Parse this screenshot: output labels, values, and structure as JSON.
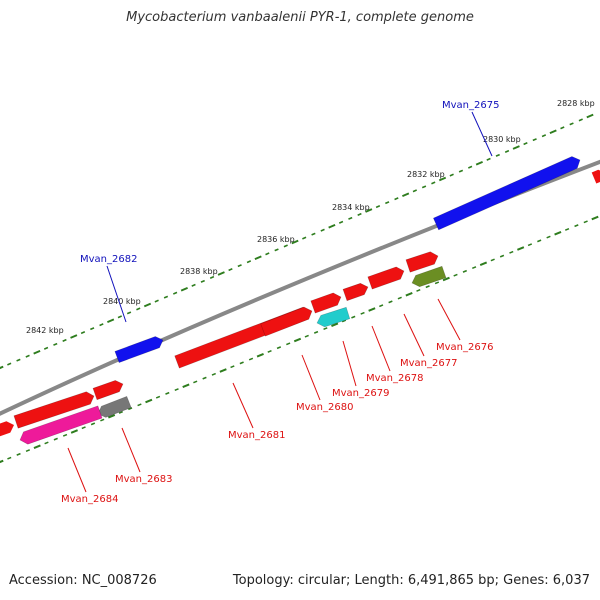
{
  "title": "Mycobacterium vanbaalenii PYR-1, complete genome",
  "footer": {
    "accession": "Accession: NC_008726",
    "topology": "Topology: circular; Length: 6,491,865 bp; Genes: 6,037"
  },
  "colors": {
    "backbone": "#888888",
    "tick": "#2e7d1e",
    "red": "#ee1111",
    "blue": "#1111ee",
    "cyan": "#22cccc",
    "olive": "#6b8e23",
    "gray": "#777777",
    "pink": "#ee1a9a",
    "label_forward": "#1111bb",
    "label_reverse": "#dd1111"
  },
  "scale": [
    {
      "label": "2828 kbp"
    },
    {
      "label": "2830 kbp"
    },
    {
      "label": "2832 kbp"
    },
    {
      "label": "2834 kbp"
    },
    {
      "label": "2836 kbp"
    },
    {
      "label": "2838 kbp"
    },
    {
      "label": "2840 kbp"
    },
    {
      "label": "2842 kbp"
    }
  ],
  "genes": [
    {
      "name": "Mvan_2675",
      "strand": "forward",
      "color": "blue",
      "labeled": true
    },
    {
      "name": "Mvan_2676",
      "strand": "reverse",
      "color": "olive",
      "labeled": true
    },
    {
      "name": "Mvan_2677",
      "strand": "reverse",
      "color": "red",
      "labeled": true
    },
    {
      "name": "Mvan_2678",
      "strand": "reverse",
      "color": "red",
      "labeled": true
    },
    {
      "name": "Mvan_2679",
      "strand": "reverse",
      "color": "cyan",
      "labeled": true
    },
    {
      "name": "Mvan_2680",
      "strand": "reverse",
      "color": "red",
      "labeled": true
    },
    {
      "name": "Mvan_2681",
      "strand": "reverse",
      "color": "red",
      "labeled": true
    },
    {
      "name": "Mvan_2682",
      "strand": "forward",
      "color": "blue",
      "labeled": true
    },
    {
      "name": "Mvan_2683",
      "strand": "reverse",
      "color": "gray",
      "labeled": true
    },
    {
      "name": "Mvan_2684",
      "strand": "reverse",
      "color": "pink",
      "labeled": true
    }
  ]
}
